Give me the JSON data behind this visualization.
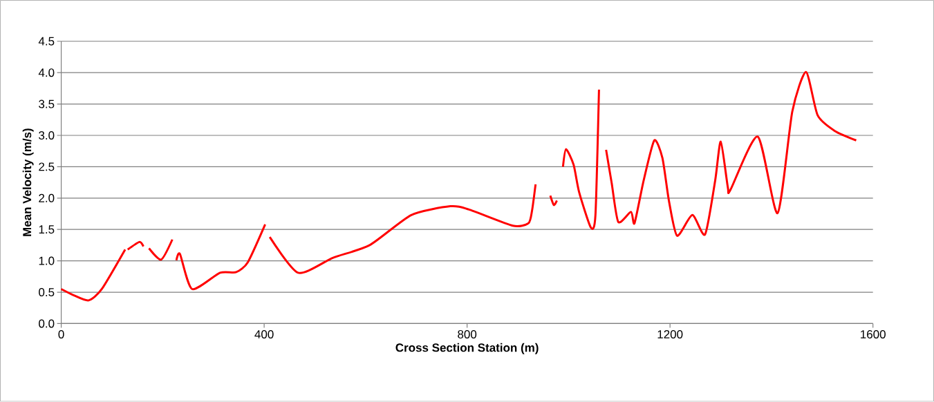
{
  "chart_data": {
    "type": "line",
    "xlabel": "Cross Section Station (m)",
    "ylabel": "Mean Velocity (m/s)",
    "x": [
      0,
      25,
      54,
      80,
      126,
      128,
      131,
      154,
      162,
      167,
      173,
      197,
      219,
      223,
      227,
      234,
      258,
      313,
      345,
      368,
      402,
      406,
      411,
      467,
      536,
      608,
      690,
      767,
      803,
      890,
      921,
      928,
      935,
      950,
      964,
      971,
      977,
      983,
      989,
      995,
      1010,
      1021,
      1044,
      1053,
      1060,
      1067,
      1074,
      1085,
      1098,
      1123,
      1130,
      1148,
      1169,
      1185,
      1198,
      1214,
      1244,
      1269,
      1289,
      1300,
      1314,
      1319,
      1373,
      1412,
      1441,
      1468,
      1491,
      1525,
      1567
    ],
    "series": [
      {
        "color": "#ff0000",
        "values": [
          0.55,
          0.45,
          0.37,
          0.55,
          1.18,
          null,
          1.18,
          1.3,
          1.23,
          null,
          1.2,
          1.02,
          1.34,
          null,
          1.01,
          1.11,
          0.55,
          0.81,
          0.82,
          0.98,
          1.58,
          null,
          1.38,
          0.81,
          1.05,
          1.25,
          1.73,
          1.87,
          1.82,
          1.56,
          1.6,
          1.8,
          2.22,
          null,
          2.04,
          1.89,
          1.96,
          null,
          2.5,
          2.78,
          2.53,
          2.09,
          1.53,
          1.73,
          3.73,
          null,
          2.77,
          2.24,
          1.62,
          1.78,
          1.6,
          2.28,
          2.92,
          2.64,
          1.95,
          1.4,
          1.73,
          1.42,
          2.28,
          2.9,
          2.17,
          2.13,
          2.98,
          1.76,
          3.38,
          4.01,
          3.32,
          3.07,
          2.92
        ]
      }
    ],
    "xlim": [
      0,
      1600
    ],
    "xticks": [
      0,
      400,
      800,
      1200,
      1600
    ],
    "ylim": [
      0,
      4.5
    ],
    "yticks": [
      {
        "value": 0,
        "label": "0.0"
      },
      {
        "value": 0.5,
        "label": "0.5"
      },
      {
        "value": 1,
        "label": "1.0"
      },
      {
        "value": 1.5,
        "label": "1.5"
      },
      {
        "value": 2,
        "label": "2.0"
      },
      {
        "value": 2.5,
        "label": "2.5"
      },
      {
        "value": 3,
        "label": "3.0"
      },
      {
        "value": 3.5,
        "label": "3.5"
      },
      {
        "value": 4,
        "label": "4.0"
      },
      {
        "value": 4.5,
        "label": "4.5"
      }
    ],
    "grid": "y",
    "marker": "none",
    "line_style": "solid"
  }
}
